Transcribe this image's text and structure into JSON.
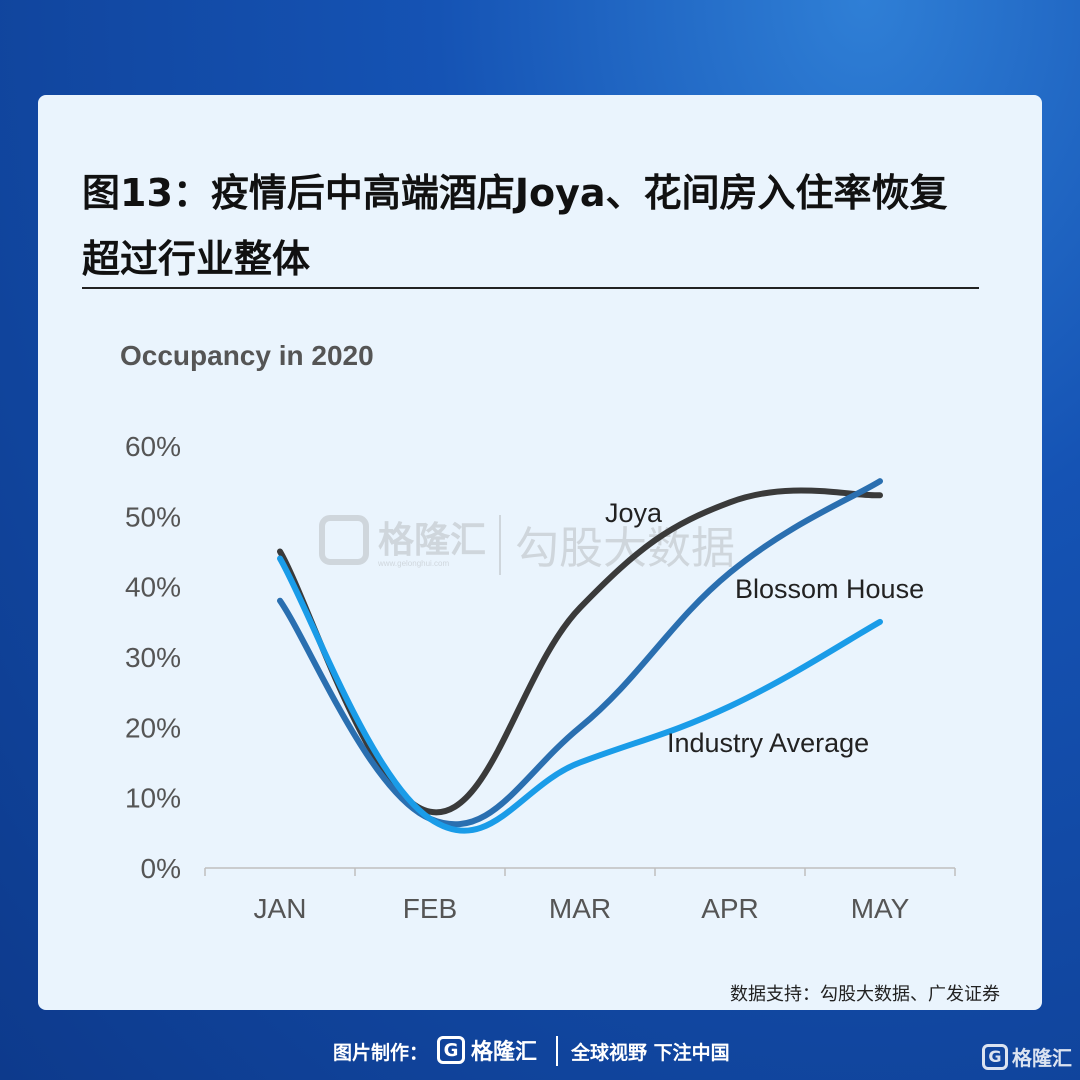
{
  "title": "图13：疫情后中高端酒店Joya、花间房入住率恢复超过行业整体",
  "watermark": {
    "brand": "格隆汇",
    "url": "www.gelonghui.com",
    "secondary": "勾股大数据"
  },
  "source": "数据支持：勾股大数据、广发证券",
  "footer": {
    "made_by": "图片制作：",
    "logo_text": "格隆汇",
    "slogan": "全球视野 下注中国",
    "corner_logo_text": "格隆汇"
  },
  "colors": {
    "joya": "#3a3a3a",
    "blossom": "#2a6fb0",
    "industry": "#1a9ce8",
    "axis_text": "#555555"
  },
  "chart_data": {
    "type": "line",
    "title": "Occupancy in 2020",
    "categories": [
      "JAN",
      "FEB",
      "MAR",
      "APR",
      "MAY"
    ],
    "ylim": [
      0,
      60
    ],
    "yticks": [
      0,
      10,
      20,
      30,
      40,
      50,
      60
    ],
    "ytick_labels": [
      "0%",
      "10%",
      "20%",
      "30%",
      "40%",
      "50%",
      "60%"
    ],
    "series": [
      {
        "name": "Joya",
        "values": [
          45,
          8,
          37,
          52,
          53
        ]
      },
      {
        "name": "Blossom House",
        "values": [
          38,
          7,
          20,
          42,
          55
        ]
      },
      {
        "name": "Industry Average",
        "values": [
          44,
          7,
          15,
          23,
          35
        ]
      }
    ]
  }
}
